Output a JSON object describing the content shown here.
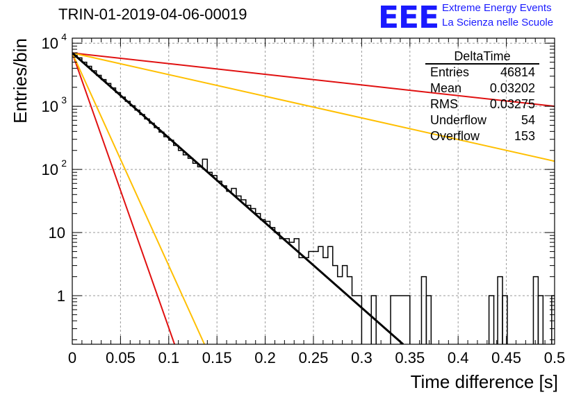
{
  "header": {
    "title": "TRIN-01-2019-04-06-00019",
    "logo_letters": "EEE",
    "logo_line1": "Extreme Energy Events",
    "logo_line2": "La Scienza nelle Scuole"
  },
  "colors": {
    "histogram": "#000000",
    "fit": "#000000",
    "red": "#e01010",
    "orange": "#ffbf00",
    "grid": "#999999",
    "logo": "#1a1aff"
  },
  "chart_data": {
    "type": "histogram",
    "xlabel": "Time difference [s]",
    "ylabel": "Entries/bin",
    "xlim": [
      0,
      0.5
    ],
    "ylim": [
      0.17,
      12000
    ],
    "yscale": "log",
    "grid": true,
    "x_ticks": [
      "0",
      "0.05",
      "0.1",
      "0.15",
      "0.2",
      "0.25",
      "0.3",
      "0.35",
      "0.4",
      "0.45",
      "0.5"
    ],
    "y_ticks": [
      {
        "value": 1,
        "base": "1",
        "exp": ""
      },
      {
        "value": 10,
        "base": "10",
        "exp": ""
      },
      {
        "value": 100,
        "base": "10",
        "exp": "2"
      },
      {
        "value": 1000,
        "base": "10",
        "exp": "3"
      },
      {
        "value": 10000,
        "base": "10",
        "exp": "4"
      }
    ],
    "stats_box": {
      "title": "DeltaTime",
      "rows": [
        {
          "label": "Entries",
          "value": "46814"
        },
        {
          "label": "Mean",
          "value": "0.03202"
        },
        {
          "label": "RMS",
          "value": "0.03275"
        },
        {
          "label": "Underflow",
          "value": "54"
        },
        {
          "label": "Overflow",
          "value": "153"
        }
      ]
    },
    "histogram": {
      "bin_width": 0.005,
      "counts": [
        7000,
        5850,
        5000,
        4300,
        3650,
        3100,
        2650,
        2300,
        1950,
        1650,
        1400,
        1200,
        1020,
        870,
        740,
        630,
        540,
        460,
        390,
        330,
        290,
        240,
        200,
        170,
        150,
        125,
        110,
        145,
        90,
        80,
        65,
        55,
        45,
        50,
        38,
        33,
        27,
        24,
        20,
        16,
        15,
        12,
        10,
        8,
        8,
        7,
        8,
        4,
        4,
        5,
        5,
        6,
        4,
        6,
        3,
        2,
        3,
        2,
        1,
        1,
        0,
        0,
        1,
        0,
        0,
        0,
        1,
        1,
        1,
        1,
        0,
        0,
        0,
        0,
        0,
        0,
        0,
        0,
        0,
        0,
        0,
        0,
        0,
        0,
        0,
        0,
        0,
        0,
        0,
        0,
        0,
        0,
        0,
        0,
        0,
        0,
        0,
        0,
        0,
        0
      ],
      "extra_bins": [
        {
          "x": 0.362,
          "count": 2
        },
        {
          "x": 0.367,
          "count": 1
        },
        {
          "x": 0.432,
          "count": 1
        },
        {
          "x": 0.441,
          "count": 2
        },
        {
          "x": 0.446,
          "count": 1
        },
        {
          "x": 0.478,
          "count": 2
        },
        {
          "x": 0.483,
          "count": 1
        },
        {
          "x": 0.497,
          "count": 1
        }
      ]
    },
    "lines": [
      {
        "color": "red",
        "points": [
          [
            0,
            7000
          ],
          [
            0.5,
            1000
          ]
        ]
      },
      {
        "color": "orange",
        "points": [
          [
            0,
            7000
          ],
          [
            0.5,
            135
          ]
        ]
      },
      {
        "color": "red",
        "points": [
          [
            0,
            7000
          ],
          [
            0.106,
            0.17
          ]
        ]
      },
      {
        "color": "orange",
        "points": [
          [
            0,
            7000
          ],
          [
            0.137,
            0.17
          ]
        ]
      },
      {
        "color": "fit",
        "points": [
          [
            0,
            7000
          ],
          [
            0.343,
            0.17
          ]
        ]
      }
    ]
  }
}
